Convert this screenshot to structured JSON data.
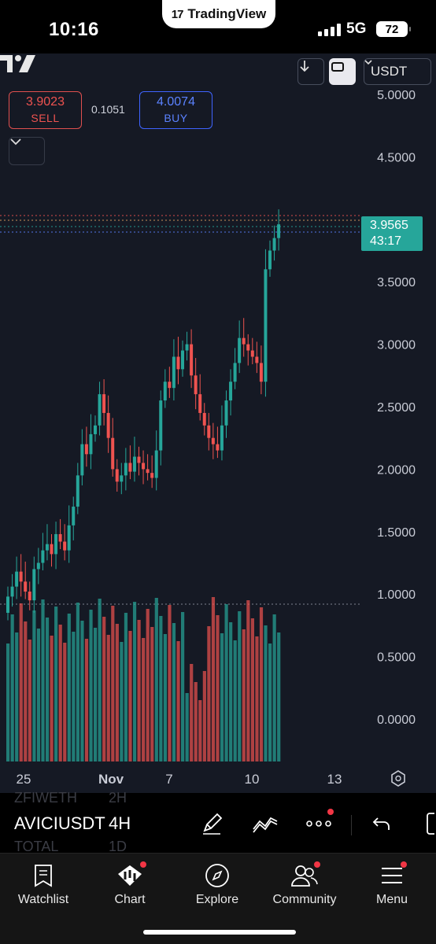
{
  "status_bar": {
    "time": "10:16",
    "app_pill": "TradingView",
    "network": "5G",
    "battery": "72"
  },
  "toolbar": {
    "currency": "USDT"
  },
  "trade": {
    "sell_price": "3.9023",
    "sell_label": "SELL",
    "spread": "0.1051",
    "buy_price": "4.0074",
    "buy_label": "BUY"
  },
  "price_scale": {
    "labels": [
      "5.0000",
      "4.5000",
      "3.5000",
      "3.0000",
      "2.5000",
      "2.0000",
      "1.5000",
      "1.0000",
      "0.5000",
      "0.0000"
    ]
  },
  "last_price": {
    "value": "3.9565",
    "countdown": "43:17"
  },
  "time_axis": {
    "labels": [
      "25",
      "Nov",
      "7",
      "10",
      "13"
    ]
  },
  "symbol_row": {
    "ghost_top": [
      "ZFIWETH",
      "2H"
    ],
    "symbol": "AVICIUSDT",
    "interval": "4H",
    "ghost_bottom": [
      "TOTAL",
      "1D"
    ]
  },
  "nav": {
    "items": [
      "Watchlist",
      "Chart",
      "Explore",
      "Community",
      "Menu"
    ]
  },
  "colors": {
    "up": "#26a69a",
    "down": "#ef5350",
    "background": "#151924"
  }
}
